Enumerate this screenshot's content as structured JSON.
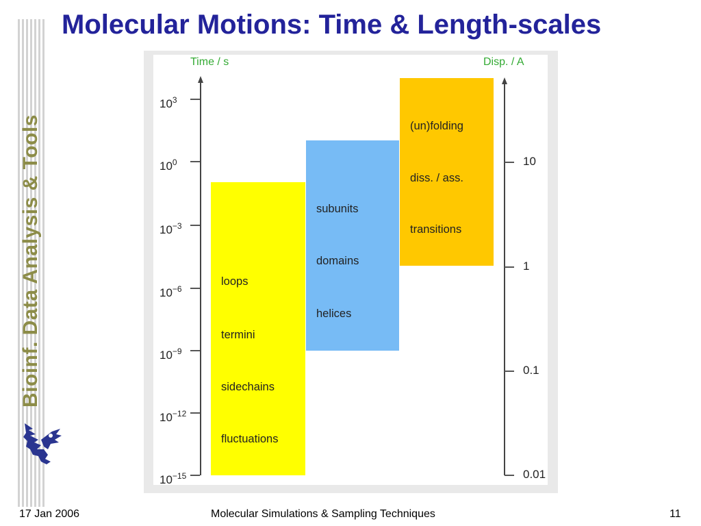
{
  "slide": {
    "title": "Molecular Motions: Time & Length-scales",
    "side_title": "Bioinf. Data Analysis & Tools",
    "footer": {
      "date": "17 Jan 2006",
      "course": "Molecular Simulations & Sampling Techniques",
      "page": "11"
    },
    "logo_icon": "griffin-logo-icon"
  },
  "diagram": {
    "left_axis": {
      "title": "Time / s",
      "ticks": [
        {
          "base": "10",
          "exp": "3"
        },
        {
          "base": "10",
          "exp": "0"
        },
        {
          "base": "10",
          "exp": "−3"
        },
        {
          "base": "10",
          "exp": "−6"
        },
        {
          "base": "10",
          "exp": "−9"
        },
        {
          "base": "10",
          "exp": "−12"
        },
        {
          "base": "10",
          "exp": "−15"
        }
      ]
    },
    "right_axis": {
      "title": "Disp. / A",
      "ticks": [
        "10",
        "1",
        "0.1",
        "0.01"
      ]
    },
    "blocks": [
      {
        "color": "#ffff00",
        "labels": [
          "loops",
          "termini",
          "sidechains",
          "fluctuations"
        ]
      },
      {
        "color": "#77bbf5",
        "labels": [
          "subunits",
          "domains",
          "helices"
        ]
      },
      {
        "color": "#ffc800",
        "labels": [
          "(un)folding",
          "diss. / ass.",
          "transitions"
        ]
      }
    ],
    "colors": {
      "axis_title": "#33aa33",
      "title": "#23239a",
      "side_title": "#8c8c48"
    }
  }
}
